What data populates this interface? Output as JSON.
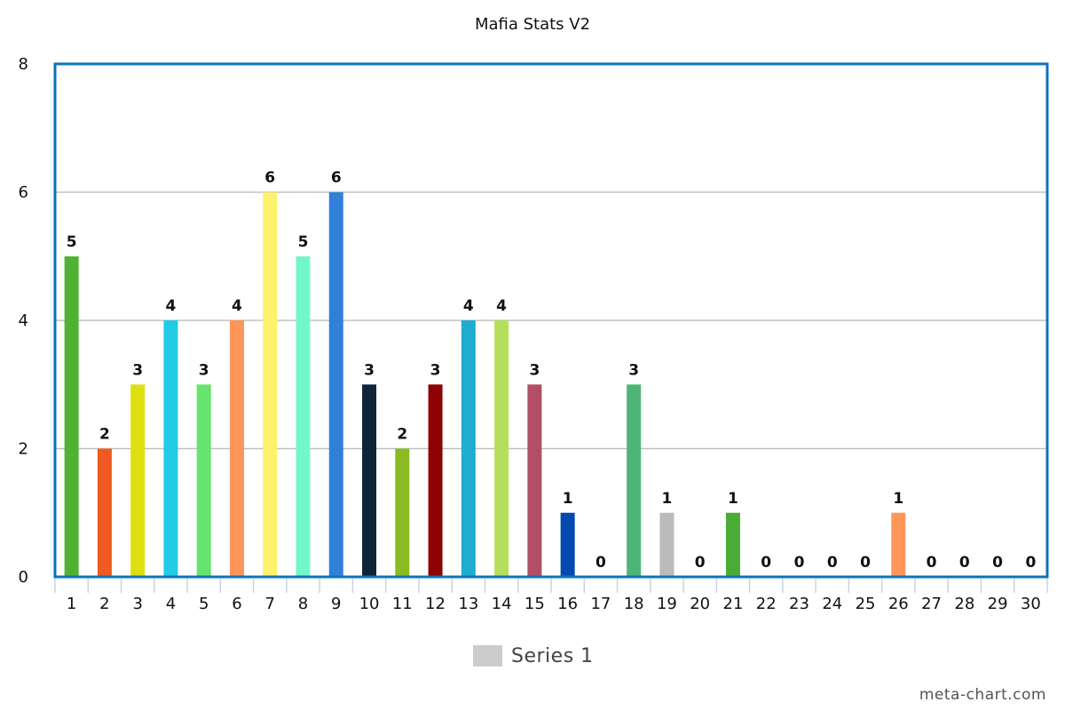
{
  "chart_data": {
    "type": "bar",
    "title": "Mafia Stats V2",
    "xlabel": "",
    "ylabel": "",
    "ylim": [
      0,
      8
    ],
    "yticks": [
      0,
      2,
      4,
      6,
      8
    ],
    "grid": true,
    "legend_position": "bottom-center",
    "categories": [
      "1",
      "2",
      "3",
      "4",
      "5",
      "6",
      "7",
      "8",
      "9",
      "10",
      "11",
      "12",
      "13",
      "14",
      "15",
      "16",
      "17",
      "18",
      "19",
      "20",
      "21",
      "22",
      "23",
      "24",
      "25",
      "26",
      "27",
      "28",
      "29",
      "30"
    ],
    "series": [
      {
        "name": "Series 1",
        "values": [
          5,
          2,
          3,
          4,
          3,
          4,
          6,
          5,
          6,
          3,
          2,
          3,
          4,
          4,
          3,
          1,
          0,
          3,
          1,
          0,
          1,
          0,
          0,
          0,
          0,
          1,
          0,
          0,
          0,
          0
        ],
        "colors": [
          "#4fb235",
          "#ef5a20",
          "#dfdf10",
          "#22cbe6",
          "#66e46e",
          "#fd9658",
          "#fdf26b",
          "#73f7c9",
          "#3080d9",
          "#0f2439",
          "#8abb22",
          "#8c0205",
          "#1eaccf",
          "#b5df5a",
          "#b24f65",
          "#0349b0",
          "#cccccc",
          "#4fb577",
          "#bbbbbb",
          "#cccccc",
          "#4aac36",
          "#cccccc",
          "#cccccc",
          "#cccccc",
          "#cccccc",
          "#fd9658",
          "#cccccc",
          "#cccccc",
          "#cccccc",
          "#cccccc"
        ]
      }
    ]
  },
  "legend": {
    "swatch_color": "#cccccc",
    "label": "Series 1"
  },
  "watermark": "meta-chart.com",
  "colors": {
    "frame": "#0b73ba",
    "grid": "#c0c0c0"
  }
}
